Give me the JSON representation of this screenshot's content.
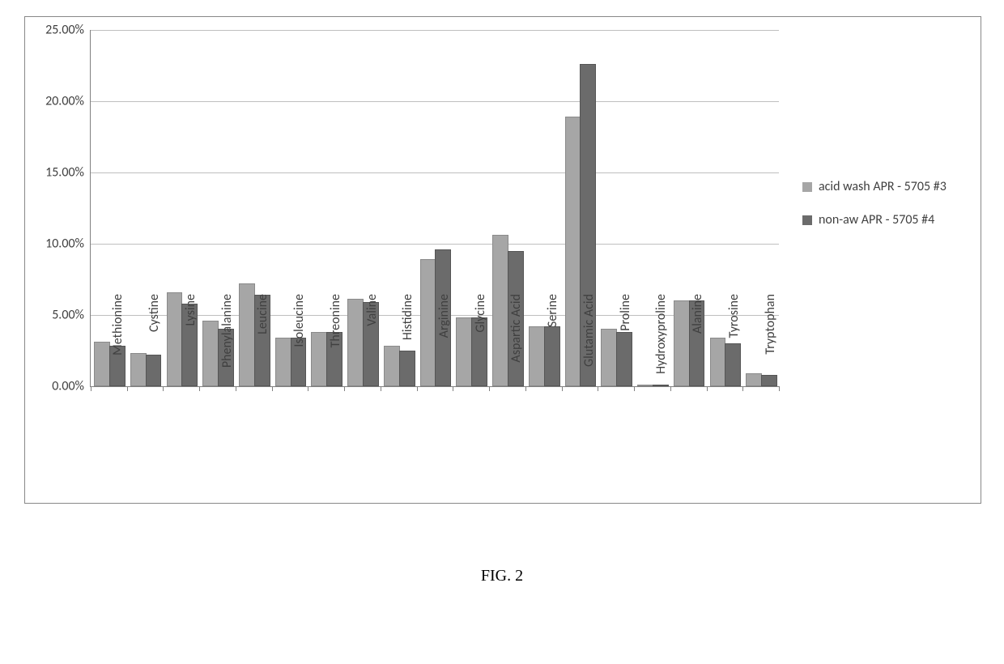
{
  "caption": "FIG. 2",
  "chart": {
    "type": "bar",
    "background_color": "#ffffff",
    "border_color": "#888888",
    "grid_color": "#bfbfbf",
    "axis_color": "#808080",
    "tick_font_size": 16,
    "tick_color": "#404040",
    "y": {
      "min": 0,
      "max": 25,
      "step": 5,
      "format_pct": true,
      "decimals": 2
    },
    "categories": [
      "Methionine",
      "Cystine",
      "Lysine",
      "Phenylalanine",
      "Leucine",
      "Isoleucine",
      "Threonine",
      "Valine",
      "Histidine",
      "Arginine",
      "Glycine",
      "Aspartic Acid",
      "Serine",
      "Glutamic Acid",
      "Proline",
      "Hydroxyproline",
      "Alanine",
      "Tyrosine",
      "Tryptophan"
    ],
    "series": [
      {
        "label": "acid wash APR - 5705 #3",
        "color": "#a6a6a6",
        "border": "#8a8a8a",
        "values": [
          3.0,
          2.2,
          6.5,
          4.5,
          7.1,
          3.3,
          3.7,
          6.0,
          2.7,
          8.8,
          4.7,
          10.5,
          4.1,
          18.8,
          3.9,
          0.0,
          5.9,
          3.3,
          0.8
        ]
      },
      {
        "label": "non-aw APR - 5705 #4",
        "color": "#6b6b6b",
        "border": "#555555",
        "values": [
          2.7,
          2.1,
          5.7,
          3.9,
          6.3,
          3.3,
          3.7,
          5.8,
          2.4,
          9.5,
          4.7,
          9.4,
          4.1,
          22.5,
          3.7,
          0.0,
          5.9,
          2.9,
          0.7
        ]
      }
    ],
    "bar": {
      "group_width_ratio": 0.82,
      "inner_gap_ratio": 0.02
    },
    "legend": {
      "font_size": 16,
      "swatch_size": 12
    }
  }
}
